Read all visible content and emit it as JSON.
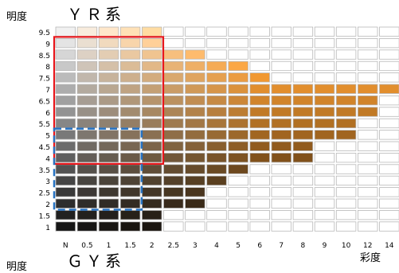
{
  "titles": {
    "top": "ＹＲ系",
    "bottom": "ＧＹ系",
    "ylabel_top": "明度",
    "ylabel_bottom": "明度",
    "xlabel": "彩度"
  },
  "chart_data": {
    "type": "heatmap",
    "xlabel": "彩度",
    "ylabel": "明度",
    "x_categories": [
      "N",
      "0.5",
      "1",
      "1.5",
      "2",
      "2.5",
      "3",
      "4",
      "5",
      "6",
      "7",
      "8",
      "9",
      "10",
      "12",
      "14"
    ],
    "y_categories": [
      "9.5",
      "9",
      "8.5",
      "8",
      "7.5",
      "7",
      "6.5",
      "6",
      "5.5",
      "5",
      "4.5",
      "4",
      "3.5",
      "3",
      "2.5",
      "2",
      "1.5",
      "1"
    ],
    "chroma_max_per_value": {
      "9.5": "2",
      "9": "2",
      "8.5": "3",
      "8": "5",
      "7.5": "6",
      "7": "14",
      "6.5": "12",
      "6": "12",
      "5.5": "10",
      "5": "10",
      "4.5": "8",
      "4": "8",
      "3.5": "5",
      "3": "4",
      "2.5": "3",
      "2": "3",
      "1.5": "2",
      "1": "2"
    },
    "highlights": [
      {
        "series": "ＹＲ系",
        "color": "#e8161b",
        "style": "solid",
        "value_range": [
          "9",
          "4"
        ],
        "chroma_range": [
          "N",
          "2"
        ]
      },
      {
        "series": "ＧＹ系",
        "color": "#2672c2",
        "style": "dashed",
        "value_range": [
          "5",
          "2"
        ],
        "chroma_range": [
          "N",
          "1.5"
        ]
      }
    ],
    "colors": {
      "hue": "#e8922e",
      "grid_border": "#b8b8b8"
    }
  }
}
